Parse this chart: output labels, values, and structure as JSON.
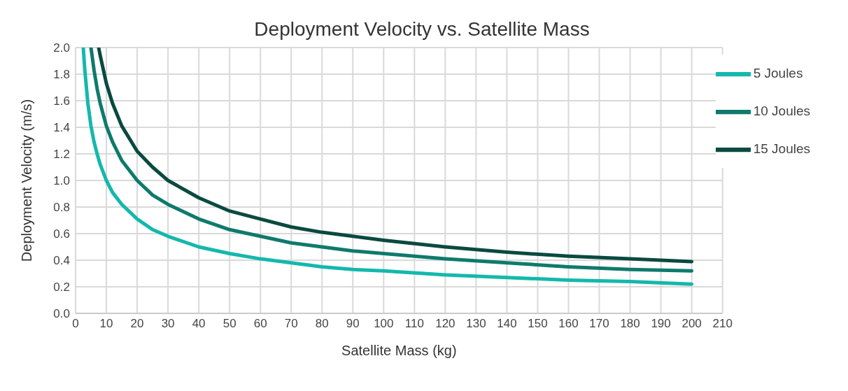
{
  "chart_data": {
    "type": "line",
    "title": "Deployment Velocity vs. Satellite Mass",
    "xlabel": "Satellite Mass (kg)",
    "ylabel": "Deployment Velocity (m/s)",
    "xlim": [
      0,
      210
    ],
    "xticks": [
      0,
      10,
      20,
      30,
      40,
      50,
      60,
      70,
      80,
      90,
      100,
      110,
      120,
      130,
      140,
      150,
      160,
      170,
      180,
      190,
      200,
      210
    ],
    "ylim": [
      0,
      2
    ],
    "yticks": [
      {
        "value": 0,
        "label": "0.0"
      },
      {
        "value": 0.2,
        "label": "0.2"
      },
      {
        "value": 0.4,
        "label": "0.4"
      },
      {
        "value": 0.6,
        "label": "0.6"
      },
      {
        "value": 0.8,
        "label": "0.8"
      },
      {
        "value": 1,
        "label": "1.0"
      },
      {
        "value": 1.2,
        "label": "1.2"
      },
      {
        "value": 1.4,
        "label": "1.4"
      },
      {
        "value": 1.6,
        "label": "1.6"
      },
      {
        "value": 1.8,
        "label": "1.8"
      },
      {
        "value": 2,
        "label": "2.0"
      }
    ],
    "grid": true,
    "legend": "top right",
    "marker": "none",
    "line_style": "solid",
    "series": [
      {
        "name": "5 Joules",
        "color": "#14b8ac",
        "x": [
          2.5,
          3,
          4,
          5,
          6,
          7,
          8,
          10,
          12,
          15,
          20,
          25,
          30,
          40,
          50,
          60,
          70,
          80,
          90,
          100,
          120,
          140,
          160,
          180,
          200
        ],
        "values": [
          2.0,
          1.83,
          1.58,
          1.41,
          1.29,
          1.2,
          1.12,
          1.0,
          0.91,
          0.82,
          0.71,
          0.63,
          0.58,
          0.5,
          0.45,
          0.41,
          0.38,
          0.35,
          0.33,
          0.32,
          0.29,
          0.27,
          0.25,
          0.24,
          0.22
        ]
      },
      {
        "name": "10 Joules",
        "color": "#0e7a6c",
        "x": [
          5,
          6,
          7,
          8,
          10,
          12,
          15,
          20,
          25,
          30,
          40,
          50,
          60,
          70,
          80,
          90,
          100,
          120,
          140,
          160,
          180,
          200
        ],
        "values": [
          2.0,
          1.83,
          1.69,
          1.58,
          1.41,
          1.29,
          1.15,
          1.0,
          0.89,
          0.82,
          0.71,
          0.63,
          0.58,
          0.53,
          0.5,
          0.47,
          0.45,
          0.41,
          0.38,
          0.35,
          0.33,
          0.32
        ]
      },
      {
        "name": "15 Joules",
        "color": "#0a4a40",
        "x": [
          7.5,
          8,
          10,
          12,
          15,
          20,
          25,
          30,
          40,
          50,
          60,
          70,
          80,
          90,
          100,
          120,
          140,
          160,
          180,
          200
        ],
        "values": [
          2.0,
          1.94,
          1.73,
          1.58,
          1.41,
          1.22,
          1.1,
          1.0,
          0.87,
          0.77,
          0.71,
          0.65,
          0.61,
          0.58,
          0.55,
          0.5,
          0.46,
          0.43,
          0.41,
          0.39
        ]
      }
    ]
  }
}
